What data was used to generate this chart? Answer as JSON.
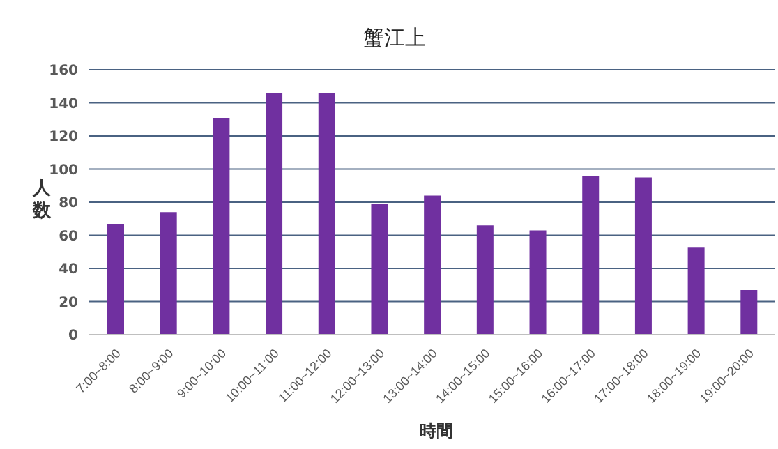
{
  "chart_data": {
    "type": "bar",
    "title": "蟹江上",
    "xlabel": "時間",
    "ylabel": "人数",
    "categories": [
      "7:00~8:00",
      "8:00~9:00",
      "9:00~10:00",
      "10:00~11:00",
      "11:00~12:00",
      "12:00~13:00",
      "13:00~14:00",
      "14:00~15:00",
      "15:00~16:00",
      "16:00~17:00",
      "17:00~18:00",
      "18:00~19:00",
      "19:00~20:00"
    ],
    "values": [
      67,
      74,
      131,
      146,
      146,
      79,
      84,
      66,
      63,
      96,
      95,
      53,
      27
    ],
    "color": "#7030a0",
    "ylim": [
      0,
      160
    ],
    "yticks": [
      0,
      20,
      40,
      60,
      80,
      100,
      120,
      140,
      160
    ],
    "grid": "y",
    "legend": false
  }
}
